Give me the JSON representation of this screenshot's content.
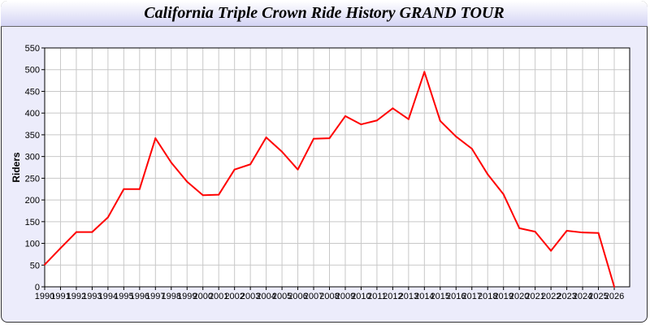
{
  "title": "California Triple Crown Ride History GRAND TOUR",
  "chart_data": {
    "type": "line",
    "title": "California Triple Crown Ride History GRAND TOUR",
    "xlabel": "",
    "ylabel": "Riders",
    "ylim": [
      0,
      550
    ],
    "yticks": [
      0,
      50,
      100,
      150,
      200,
      250,
      300,
      350,
      400,
      450,
      500,
      550
    ],
    "grid": true,
    "line_color": "#ff0000",
    "x": [
      "1990",
      "1991",
      "1992",
      "1993",
      "1994",
      "1995",
      "1996",
      "1997",
      "1998",
      "1999",
      "2000",
      "2001",
      "2002",
      "2003",
      "2004",
      "2005",
      "2006",
      "2007",
      "2008",
      "2009",
      "2010",
      "2011",
      "2012",
      "2013",
      "2014",
      "2015",
      "2016",
      "2017",
      "2018",
      "2019",
      "2020",
      "2021",
      "2022",
      "2023",
      "2024",
      "2025",
      "2026"
    ],
    "series": [
      {
        "values": [
          51,
          89,
          126,
          126,
          160,
          225,
          225,
          342,
          286,
          242,
          211,
          212,
          270,
          282,
          344,
          311,
          270,
          341,
          342,
          393,
          374,
          383,
          411,
          386,
          495,
          382,
          346,
          318,
          259,
          213,
          135,
          127,
          83,
          129,
          125,
          124,
          0
        ]
      }
    ]
  }
}
